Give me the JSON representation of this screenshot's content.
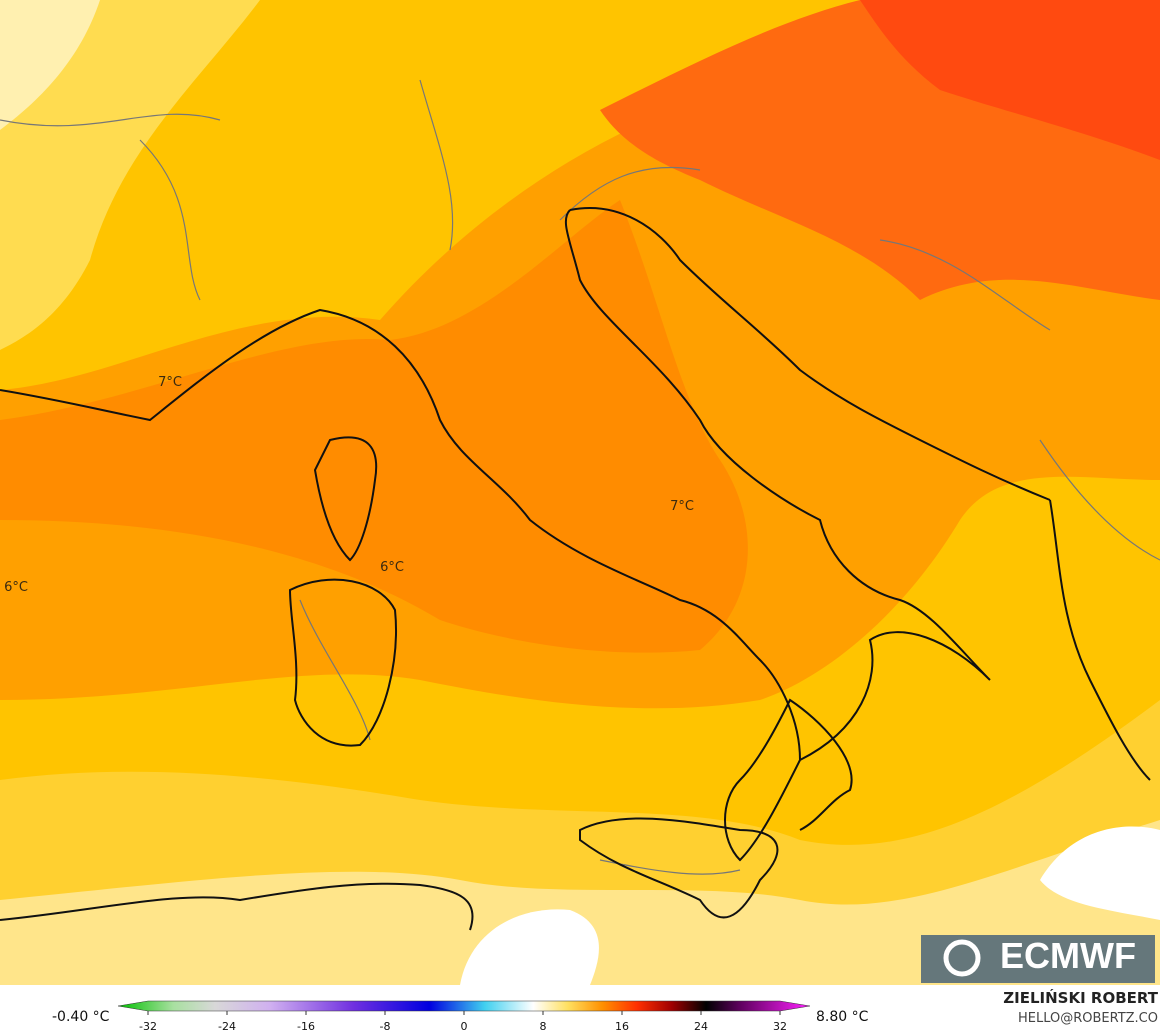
{
  "map": {
    "labels": [
      "7°C",
      "7°C",
      "6°C",
      "6°C"
    ]
  },
  "colorbar": {
    "min_label": "-0.40 °C",
    "max_label": "8.80 °C",
    "ticks": [
      -32,
      -24,
      -16,
      -8,
      0,
      8,
      16,
      24,
      32
    ]
  },
  "logo": "ECMWF",
  "credit": {
    "name": "ZIELIŃSKI ROBERT",
    "contact": "HELLO@ROBERTZ.CO"
  }
}
